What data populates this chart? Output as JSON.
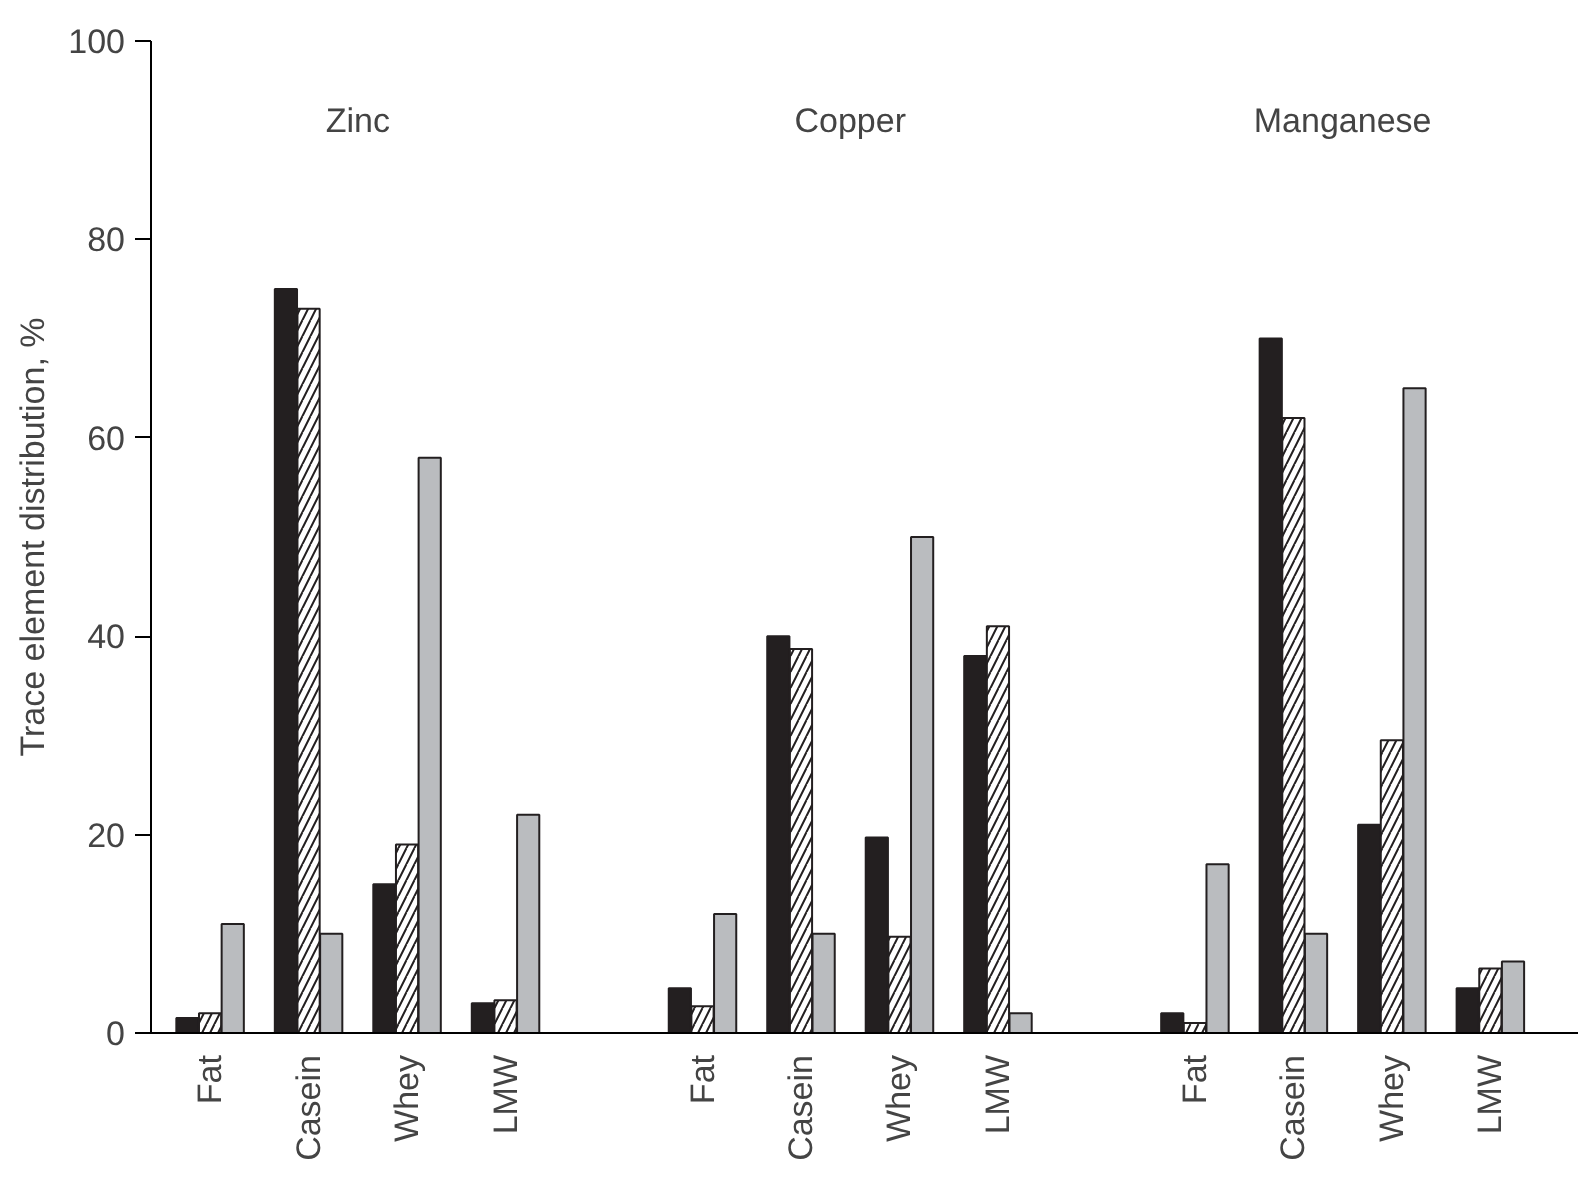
{
  "chart_data": {
    "type": "bar",
    "ylabel": "Trace element distribution, %",
    "categories": [
      "Fat",
      "Casein",
      "Whey",
      "LMW",
      null,
      "Fat",
      "Casein",
      "Whey",
      "LMW",
      null,
      "Fat",
      "Casein",
      "Whey",
      "LMW"
    ],
    "series": [
      {
        "color": "#231f20",
        "values": [
          1.5,
          75,
          15,
          3,
          null,
          4.5,
          40,
          19.7,
          38,
          null,
          2,
          70,
          21,
          4.5
        ]
      },
      {
        "color": "#ffffff",
        "values": [
          2,
          73,
          19,
          3.3,
          null,
          2.7,
          38.7,
          9.7,
          41,
          null,
          1,
          62,
          29.5,
          6.5
        ]
      },
      {
        "color": "#babcbf",
        "values": [
          11,
          10,
          58,
          22,
          null,
          12,
          10,
          50,
          2,
          null,
          17,
          10,
          65,
          7.2
        ]
      }
    ],
    "annotations": [
      "Zinc",
      "Copper",
      "Manganese"
    ],
    "ylim": [
      0,
      100
    ],
    "yticks": [
      0,
      20,
      40,
      60,
      80,
      100
    ],
    "grid": false
  }
}
